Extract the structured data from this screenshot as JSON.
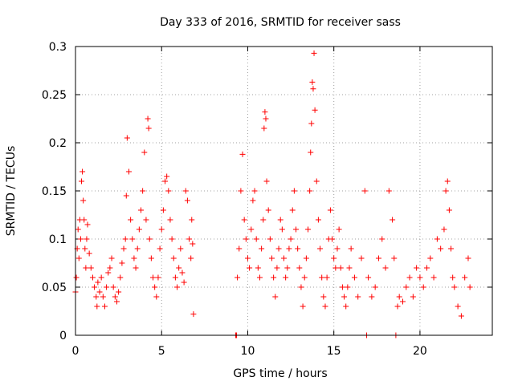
{
  "chart_data": {
    "type": "scatter",
    "title": "Day 333 of 2016, SRMTID for receiver sass",
    "xlabel": "GPS time / hours",
    "ylabel": "SRMTID / TECUs",
    "xlim": [
      0,
      24.2
    ],
    "ylim": [
      0,
      0.3
    ],
    "xticks": [
      0,
      5,
      10,
      15,
      20
    ],
    "xtick_labels": [
      "0",
      "5",
      "10",
      "15",
      "20"
    ],
    "yticks": [
      0,
      0.05,
      0.1,
      0.15,
      0.2,
      0.25,
      0.3
    ],
    "ytick_labels": [
      "0",
      "0.05",
      "0.1",
      "0.15",
      "0.2",
      "0.25",
      "0.3"
    ],
    "grid": true,
    "marker": "+",
    "color": "#ff0000",
    "series": [
      {
        "name": "sass",
        "points": [
          [
            0.0,
            0.045
          ],
          [
            0.05,
            0.06
          ],
          [
            0.1,
            0.09
          ],
          [
            0.15,
            0.11
          ],
          [
            0.2,
            0.08
          ],
          [
            0.25,
            0.12
          ],
          [
            0.3,
            0.1
          ],
          [
            0.35,
            0.16
          ],
          [
            0.4,
            0.17
          ],
          [
            0.45,
            0.14
          ],
          [
            0.5,
            0.12
          ],
          [
            0.55,
            0.09
          ],
          [
            0.6,
            0.07
          ],
          [
            0.65,
            0.1
          ],
          [
            0.7,
            0.115
          ],
          [
            0.8,
            0.085
          ],
          [
            0.9,
            0.07
          ],
          [
            1.0,
            0.06
          ],
          [
            1.1,
            0.05
          ],
          [
            1.2,
            0.04
          ],
          [
            1.25,
            0.03
          ],
          [
            1.3,
            0.055
          ],
          [
            1.4,
            0.045
          ],
          [
            1.5,
            0.06
          ],
          [
            1.6,
            0.04
          ],
          [
            1.7,
            0.03
          ],
          [
            1.8,
            0.05
          ],
          [
            1.9,
            0.065
          ],
          [
            2.0,
            0.07
          ],
          [
            2.1,
            0.08
          ],
          [
            2.2,
            0.05
          ],
          [
            2.3,
            0.04
          ],
          [
            2.4,
            0.035
          ],
          [
            2.5,
            0.045
          ],
          [
            2.6,
            0.06
          ],
          [
            2.7,
            0.075
          ],
          [
            2.8,
            0.09
          ],
          [
            2.9,
            0.1
          ],
          [
            2.95,
            0.145
          ],
          [
            3.0,
            0.205
          ],
          [
            3.1,
            0.17
          ],
          [
            3.2,
            0.12
          ],
          [
            3.3,
            0.1
          ],
          [
            3.4,
            0.08
          ],
          [
            3.5,
            0.07
          ],
          [
            3.6,
            0.09
          ],
          [
            3.7,
            0.11
          ],
          [
            3.8,
            0.13
          ],
          [
            3.9,
            0.15
          ],
          [
            4.0,
            0.19
          ],
          [
            4.1,
            0.12
          ],
          [
            4.2,
            0.225
          ],
          [
            4.25,
            0.215
          ],
          [
            4.3,
            0.1
          ],
          [
            4.4,
            0.08
          ],
          [
            4.5,
            0.06
          ],
          [
            4.6,
            0.05
          ],
          [
            4.7,
            0.04
          ],
          [
            4.8,
            0.06
          ],
          [
            4.9,
            0.09
          ],
          [
            5.0,
            0.11
          ],
          [
            5.1,
            0.13
          ],
          [
            5.2,
            0.16
          ],
          [
            5.3,
            0.165
          ],
          [
            5.4,
            0.15
          ],
          [
            5.5,
            0.12
          ],
          [
            5.6,
            0.1
          ],
          [
            5.7,
            0.08
          ],
          [
            5.8,
            0.06
          ],
          [
            5.9,
            0.05
          ],
          [
            6.0,
            0.07
          ],
          [
            6.1,
            0.09
          ],
          [
            6.2,
            0.065
          ],
          [
            6.3,
            0.055
          ],
          [
            6.4,
            0.15
          ],
          [
            6.5,
            0.14
          ],
          [
            6.6,
            0.1
          ],
          [
            6.7,
            0.08
          ],
          [
            6.75,
            0.12
          ],
          [
            6.8,
            0.095
          ],
          [
            6.85,
            0.022
          ],
          [
            9.3,
            0.0
          ],
          [
            9.35,
            0.0
          ],
          [
            9.4,
            0.06
          ],
          [
            9.5,
            0.09
          ],
          [
            9.6,
            0.15
          ],
          [
            9.7,
            0.188
          ],
          [
            9.8,
            0.12
          ],
          [
            9.9,
            0.1
          ],
          [
            10.0,
            0.08
          ],
          [
            10.1,
            0.07
          ],
          [
            10.2,
            0.11
          ],
          [
            10.3,
            0.14
          ],
          [
            10.4,
            0.15
          ],
          [
            10.5,
            0.1
          ],
          [
            10.6,
            0.07
          ],
          [
            10.7,
            0.06
          ],
          [
            10.8,
            0.09
          ],
          [
            10.9,
            0.12
          ],
          [
            10.95,
            0.215
          ],
          [
            11.0,
            0.232
          ],
          [
            11.05,
            0.225
          ],
          [
            11.1,
            0.16
          ],
          [
            11.2,
            0.13
          ],
          [
            11.3,
            0.1
          ],
          [
            11.4,
            0.08
          ],
          [
            11.5,
            0.06
          ],
          [
            11.6,
            0.04
          ],
          [
            11.7,
            0.07
          ],
          [
            11.8,
            0.09
          ],
          [
            11.9,
            0.12
          ],
          [
            12.0,
            0.11
          ],
          [
            12.1,
            0.08
          ],
          [
            12.2,
            0.06
          ],
          [
            12.3,
            0.07
          ],
          [
            12.4,
            0.09
          ],
          [
            12.5,
            0.1
          ],
          [
            12.6,
            0.13
          ],
          [
            12.7,
            0.15
          ],
          [
            12.8,
            0.11
          ],
          [
            12.9,
            0.09
          ],
          [
            13.0,
            0.07
          ],
          [
            13.1,
            0.05
          ],
          [
            13.2,
            0.03
          ],
          [
            13.3,
            0.06
          ],
          [
            13.4,
            0.08
          ],
          [
            13.5,
            0.11
          ],
          [
            13.6,
            0.15
          ],
          [
            13.65,
            0.19
          ],
          [
            13.7,
            0.22
          ],
          [
            13.75,
            0.263
          ],
          [
            13.8,
            0.256
          ],
          [
            13.85,
            0.293
          ],
          [
            13.9,
            0.234
          ],
          [
            14.0,
            0.16
          ],
          [
            14.1,
            0.12
          ],
          [
            14.2,
            0.09
          ],
          [
            14.3,
            0.06
          ],
          [
            14.4,
            0.04
          ],
          [
            14.5,
            0.03
          ],
          [
            14.6,
            0.06
          ],
          [
            14.7,
            0.1
          ],
          [
            14.8,
            0.13
          ],
          [
            14.9,
            0.1
          ],
          [
            15.0,
            0.08
          ],
          [
            15.1,
            0.07
          ],
          [
            15.2,
            0.09
          ],
          [
            15.3,
            0.11
          ],
          [
            15.4,
            0.07
          ],
          [
            15.5,
            0.05
          ],
          [
            15.6,
            0.04
          ],
          [
            15.7,
            0.03
          ],
          [
            15.8,
            0.05
          ],
          [
            15.9,
            0.07
          ],
          [
            16.0,
            0.09
          ],
          [
            16.2,
            0.06
          ],
          [
            16.4,
            0.04
          ],
          [
            16.6,
            0.08
          ],
          [
            16.8,
            0.15
          ],
          [
            16.9,
            0.0
          ],
          [
            17.0,
            0.06
          ],
          [
            17.2,
            0.04
          ],
          [
            17.4,
            0.05
          ],
          [
            17.6,
            0.08
          ],
          [
            17.8,
            0.1
          ],
          [
            18.0,
            0.07
          ],
          [
            18.2,
            0.15
          ],
          [
            18.4,
            0.12
          ],
          [
            18.5,
            0.08
          ],
          [
            18.6,
            0.0
          ],
          [
            18.7,
            0.03
          ],
          [
            18.8,
            0.04
          ],
          [
            19.0,
            0.035
          ],
          [
            19.2,
            0.05
          ],
          [
            19.4,
            0.06
          ],
          [
            19.6,
            0.04
          ],
          [
            19.8,
            0.07
          ],
          [
            20.0,
            0.06
          ],
          [
            20.2,
            0.05
          ],
          [
            20.4,
            0.07
          ],
          [
            20.6,
            0.08
          ],
          [
            20.8,
            0.06
          ],
          [
            21.0,
            0.1
          ],
          [
            21.2,
            0.09
          ],
          [
            21.4,
            0.11
          ],
          [
            21.5,
            0.15
          ],
          [
            21.6,
            0.16
          ],
          [
            21.7,
            0.13
          ],
          [
            21.8,
            0.09
          ],
          [
            21.9,
            0.06
          ],
          [
            22.0,
            0.05
          ],
          [
            22.2,
            0.03
          ],
          [
            22.4,
            0.02
          ],
          [
            22.6,
            0.06
          ],
          [
            22.8,
            0.08
          ],
          [
            22.9,
            0.05
          ]
        ]
      }
    ]
  }
}
